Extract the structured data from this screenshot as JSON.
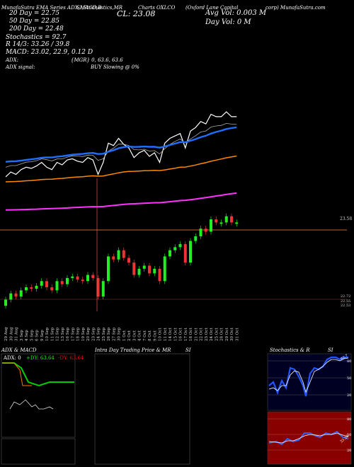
{
  "header": {
    "tags": "MunafaSutra EMA Series ADX,MACD,B",
    "indicators": "SI,Stochastics,MR",
    "charts_label": "Charts OXLCO",
    "company": "(Oxford Lane Capital",
    "site": "corp) MunafaSutra.com",
    "ema20": "20  Day = 22.75",
    "ema50": "50  Day = 22.85",
    "ema200": "200  Day = 22.48",
    "close_label": "CL: 23.08",
    "avg_vol": "Avg Vol: 0.003  M",
    "day_vol": "Day Vol: 0   M",
    "stoch": "Stochastics = 92.7",
    "r_line": "R   14/3: 33.26  / 39.8",
    "macd_line": "MACD: 23.02,  22.9,  0.12  D",
    "adx": "ADX:",
    "adx_signal": "ADX  signal:",
    "mgr": "{MGR} 0,  63.6,  63.6",
    "buy": "BUY Slowing @ 0%"
  },
  "chart_data": {
    "type": "candlestick",
    "x": [
      "29 Aug",
      "30 Aug",
      "31 Aug",
      "3 Sep",
      "4 Sep",
      "5 Sep",
      "6 Sep",
      "9 Sep",
      "10 Sep",
      "11 Sep",
      "12 Sep",
      "13 Sep",
      "16 Sep",
      "17 Sep",
      "18 Sep",
      "19 Sep",
      "20 Sep",
      "23 Sep",
      "24 Sep",
      "25 Sep",
      "26 Sep",
      "27 Sep",
      "30 Sep",
      "1 Oct",
      "2 Oct",
      "3 Oct",
      "4 Oct",
      "7 Oct",
      "8 Oct",
      "9 Oct",
      "10 Oct",
      "11 Oct",
      "14 Oct",
      "15 Oct",
      "16 Oct",
      "17 Oct",
      "18 Oct",
      "21 Oct",
      "22 Oct",
      "23 Oct",
      "24 Oct",
      "25 Oct",
      "28 Oct",
      "29 Oct",
      "30 Oct",
      "31 Oct"
    ],
    "price_labels": [
      "23.58",
      "22.72",
      "22.55",
      "22.53"
    ],
    "close": [
      22.58,
      22.62,
      22.6,
      22.64,
      22.66,
      22.65,
      22.67,
      22.7,
      22.66,
      22.64,
      22.7,
      22.68,
      22.72,
      22.73,
      22.71,
      22.7,
      22.74,
      22.72,
      22.6,
      22.7,
      22.86,
      22.84,
      22.9,
      22.85,
      22.82,
      22.74,
      22.78,
      22.8,
      22.75,
      22.78,
      22.7,
      22.86,
      22.9,
      22.92,
      22.94,
      22.82,
      22.96,
      22.99,
      23.04,
      23.02,
      23.1,
      23.08,
      23.08,
      23.12,
      23.08,
      23.08
    ],
    "ema_colors": {
      "ema20": "#ffffff",
      "ema50": "#1e6fff",
      "ema200": "#ff8800",
      "ema_long": "#ff33ff"
    },
    "panels": {
      "adx_macd": {
        "label": "ADX  & MACD",
        "adx": "ADX: 0",
        "plus_di": "+DY: 63.64",
        "minus_di": "-DY: 63.64"
      },
      "intraday": {
        "label": "Intra  Day Trading Price  & MR",
        "si": "SI"
      },
      "stoch": {
        "label": "Stochastics & R",
        "si": "SI",
        "levels": [
          "80",
          "50",
          "20"
        ],
        "value": "92.7"
      },
      "rsi": {
        "levels": [
          "80",
          "50",
          "20"
        ],
        "value": "33.26"
      }
    }
  }
}
